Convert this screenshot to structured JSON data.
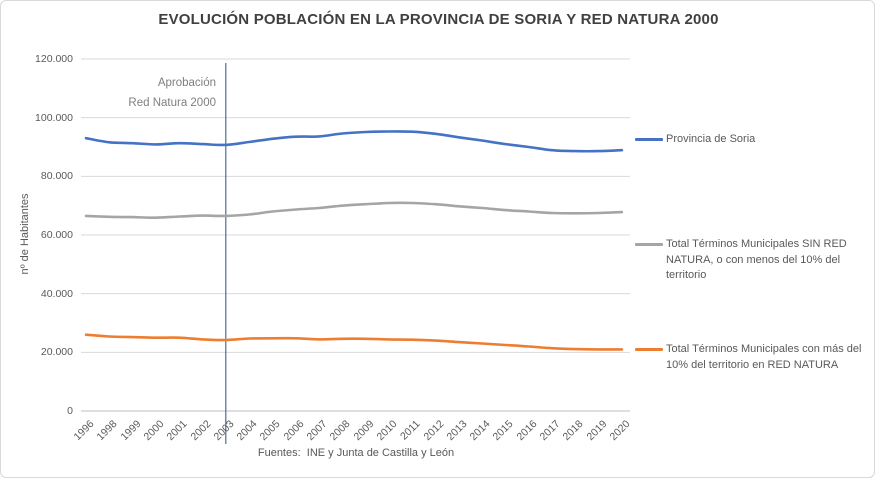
{
  "chart": {
    "title": "EVOLUCIÓN POBLACIÓN EN LA PROVINCIA DE SORIA Y RED NATURA 2000",
    "y_axis_title": "nº de Habitantes",
    "source": "Fuentes:  INE y Junta de Castilla y León",
    "annotation": {
      "lines": [
        "Aprobación",
        "Red Natura 2000"
      ],
      "year": "2003"
    }
  },
  "chart_data": {
    "type": "line",
    "title": "EVOLUCIÓN POBLACIÓN EN LA PROVINCIA DE SORIA Y RED NATURA 2000",
    "xlabel": "",
    "ylabel": "nº de Habitantes",
    "ylim": [
      0,
      120000
    ],
    "ytick_step": 20000,
    "ytick_labels": [
      "0",
      "20.000",
      "40.000",
      "60.000",
      "80.000",
      "100.000",
      "120.000"
    ],
    "grid": true,
    "legend_position": "right",
    "annotation_x": "2003",
    "categories": [
      "1996",
      "1998",
      "1999",
      "2000",
      "2001",
      "2002",
      "2003",
      "2004",
      "2005",
      "2006",
      "2007",
      "2008",
      "2009",
      "2010",
      "2011",
      "2012",
      "2013",
      "2014",
      "2015",
      "2016",
      "2017",
      "2018",
      "2019",
      "2020"
    ],
    "series": [
      {
        "name": "Provincia de Soria",
        "color": "#4472C4",
        "label_lines": [
          "Provincia de Soria"
        ],
        "values": [
          93000,
          91600,
          91300,
          90900,
          91300,
          91000,
          90700,
          91700,
          92800,
          93500,
          93600,
          94600,
          95100,
          95300,
          95200,
          94500,
          93300,
          92200,
          91000,
          90000,
          88900,
          88600,
          88600,
          88900
        ]
      },
      {
        "name": "Total Términos Municipales SIN RED NATURA, o con menos del 10% del territorio",
        "color": "#A5A5A5",
        "label_lines": [
          "Total Términos Municipales SIN RED",
          "NATURA, o con menos del 10% del",
          "territorio"
        ],
        "values": [
          66500,
          66200,
          66100,
          65900,
          66300,
          66600,
          66500,
          67000,
          68000,
          68700,
          69200,
          70000,
          70500,
          70900,
          70900,
          70500,
          69800,
          69200,
          68500,
          68000,
          67500,
          67400,
          67500,
          67800
        ]
      },
      {
        "name": "Total Términos Municipales con más del 10% del territorio en RED NATURA",
        "color": "#ED7D31",
        "label_lines": [
          "Total Términos Municipales con más del",
          "10% del territorio en RED NATURA"
        ],
        "values": [
          26000,
          25400,
          25200,
          25000,
          25000,
          24400,
          24200,
          24700,
          24800,
          24800,
          24400,
          24600,
          24600,
          24400,
          24300,
          24000,
          23500,
          23000,
          22500,
          22000,
          21400,
          21100,
          21000,
          21000
        ]
      }
    ],
    "colors": {
      "grid": "#D9D9D9",
      "axis": "#BFBFBF",
      "tick_text": "#595959",
      "title_text": "#404040",
      "annotation_line": "#44709D"
    }
  }
}
